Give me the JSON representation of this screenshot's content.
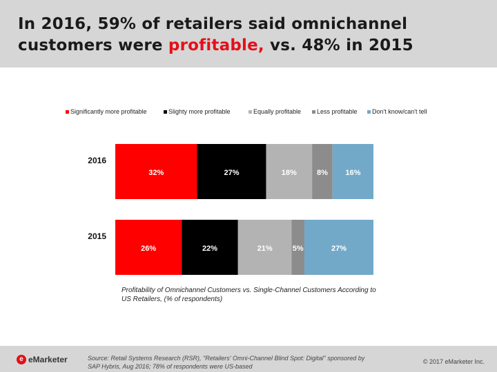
{
  "header": {
    "title_line1": "In 2016, 59% of retailers said omnichannel",
    "title_line2_pre": "customers were ",
    "title_highlight": "profitable,",
    "title_line2_post": " vs. 48% in 2015"
  },
  "chart_data": {
    "type": "bar",
    "orientation": "horizontal-stacked-100",
    "categories": [
      "2016",
      "2015"
    ],
    "series": [
      {
        "name": "Significantly more profitable",
        "color": "#ff0000",
        "values": [
          32,
          26
        ]
      },
      {
        "name": "Slighty more profitable",
        "color": "#000000",
        "values": [
          27,
          22
        ]
      },
      {
        "name": "Equally profitable",
        "color": "#b3b3b3",
        "values": [
          18,
          21
        ]
      },
      {
        "name": "Less profitable",
        "color": "#8c8c8c",
        "values": [
          8,
          5
        ]
      },
      {
        "name": "Don't know/can't tell",
        "color": "#72a9c9",
        "values": [
          16,
          27
        ]
      }
    ],
    "value_suffix": "%",
    "legend_position": "top",
    "caption": "Profitability of Omnichannel Customers vs. Single-Channel Customers According to US Retailers, (% of respondents)"
  },
  "footer": {
    "logo_text": "eMarketer",
    "source": "Source: Retail Systems Research (RSR), \"Retailers' Omni-Channel Blind Spot: Digital\" sponsored by SAP Hybris, Aug 2016; 78% of respondents were US-based",
    "copyright": "© 2017 eMarketer Inc."
  }
}
